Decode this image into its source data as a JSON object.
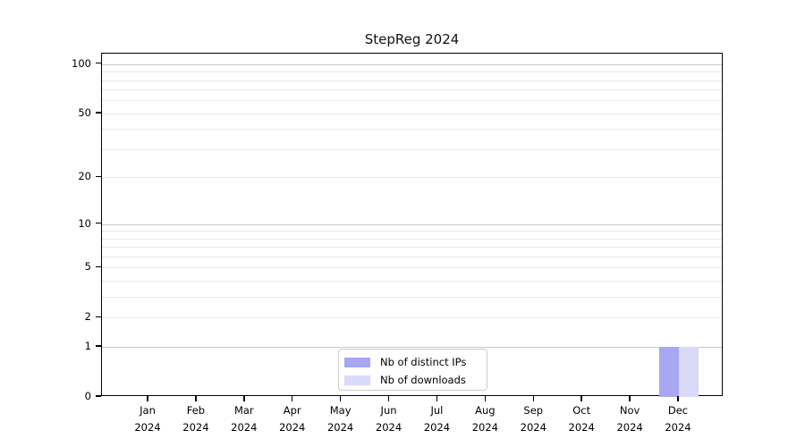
{
  "title": "StepReg 2024",
  "chart_data": {
    "type": "bar",
    "title": "StepReg 2024",
    "categories": [
      "Jan",
      "Feb",
      "Mar",
      "Apr",
      "May",
      "Jun",
      "Jul",
      "Aug",
      "Sep",
      "Oct",
      "Nov",
      "Dec"
    ],
    "x_year_suffix": "2024",
    "series": [
      {
        "name": "Nb of distinct IPs",
        "color": "#a7a7f2",
        "values": [
          0,
          0,
          0,
          0,
          0,
          0,
          0,
          0,
          0,
          0,
          0,
          1
        ]
      },
      {
        "name": "Nb of downloads",
        "color": "#d9d9f8",
        "values": [
          0,
          0,
          0,
          0,
          0,
          0,
          0,
          0,
          0,
          0,
          0,
          1
        ]
      }
    ],
    "yscale": "log1p",
    "ylim": [
      0,
      116
    ],
    "yticks": [
      0,
      1,
      2,
      5,
      10,
      20,
      50,
      100
    ],
    "major_gridlines": [
      1,
      10,
      100
    ],
    "minor_gridlines": [
      2,
      3,
      4,
      5,
      6,
      7,
      8,
      9,
      20,
      30,
      40,
      50,
      60,
      70,
      80,
      90
    ],
    "grid": true,
    "legend_position": "inside-bottom-center",
    "colors": {
      "axis": "#000000",
      "grid_major": "#c9c9c9",
      "grid_minor": "#e9e9e9",
      "background": "#ffffff",
      "legend_border": "#cccccc"
    }
  }
}
